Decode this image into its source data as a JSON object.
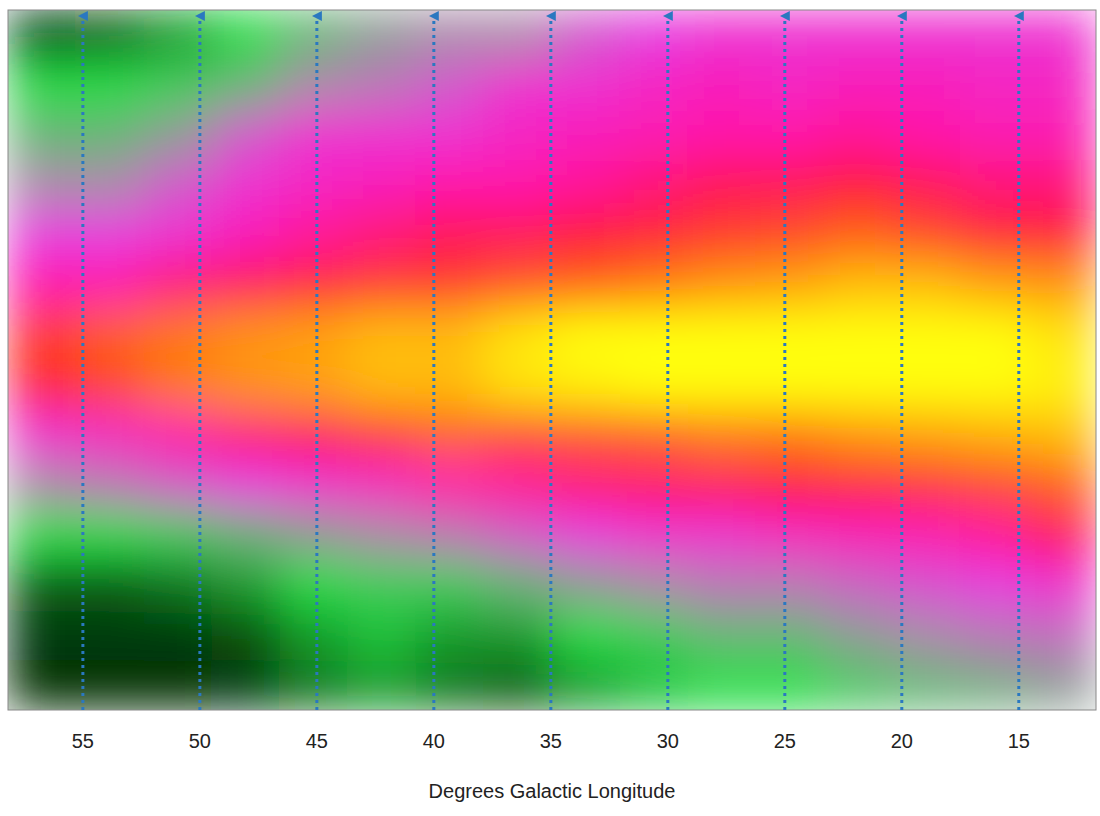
{
  "chart_data": {
    "type": "heatmap",
    "xlabel": "Degrees Galactic Longitude",
    "xlim": [
      58.2,
      11.7
    ],
    "xticks": [
      55,
      50,
      45,
      40,
      35,
      30,
      25,
      20,
      15
    ],
    "grid": true,
    "tick_labels": "x",
    "cells": [
      [
        0.5,
        1,
        1.5,
        2,
        2.5,
        2.8,
        3,
        3,
        3.5,
        3.8,
        4,
        4,
        4,
        4,
        4,
        4
      ],
      [
        2,
        2,
        2.2,
        2.5,
        3,
        3.2,
        3.5,
        4,
        4,
        4.2,
        4.3,
        4.2,
        4.3,
        4.3,
        4.2,
        4.2
      ],
      [
        2.5,
        2.5,
        2.8,
        3.5,
        4,
        4,
        4,
        4.2,
        4.3,
        4.4,
        4.5,
        4.5,
        4.6,
        4.5,
        4.4,
        4.4
      ],
      [
        3,
        3,
        3.5,
        4,
        4.2,
        4.3,
        4.5,
        4.5,
        4.6,
        4.8,
        5,
        5,
        5.2,
        5,
        4.8,
        4.8
      ],
      [
        3.8,
        3.8,
        4,
        4.3,
        4.6,
        4.8,
        5,
        5,
        5.2,
        5.3,
        5.5,
        5.6,
        5.8,
        5.6,
        5.3,
        5.2
      ],
      [
        4.5,
        4.5,
        4.8,
        5,
        5.3,
        5.5,
        5.5,
        5.7,
        5.8,
        6,
        6.2,
        6.3,
        6.5,
        6.5,
        6.3,
        6.2
      ],
      [
        5.5,
        5.8,
        6,
        6.2,
        6.3,
        6.5,
        6.5,
        6.8,
        7,
        7,
        7,
        7,
        7,
        7,
        7,
        6.8
      ],
      [
        5.3,
        5.6,
        6,
        6.2,
        6.3,
        6.5,
        6.5,
        6.8,
        6.9,
        7,
        7,
        7,
        7,
        7,
        7,
        6.9
      ],
      [
        4,
        4.2,
        4.5,
        4.8,
        5,
        5.5,
        5.8,
        5.6,
        5.7,
        5.8,
        6,
        6,
        6.2,
        6.3,
        6.4,
        6.5
      ],
      [
        3,
        3.2,
        3.5,
        3.8,
        4,
        4.2,
        4.5,
        4.6,
        4.8,
        4.9,
        5,
        5.2,
        5.3,
        5.4,
        5.6,
        5.8
      ],
      [
        2,
        2,
        2.2,
        2.5,
        2.8,
        3,
        3.2,
        3.5,
        3.8,
        4,
        4,
        4.2,
        4.3,
        4.4,
        4.6,
        5
      ],
      [
        1,
        1,
        1.2,
        1.5,
        2,
        2.2,
        2.2,
        2.5,
        2.8,
        3,
        3.2,
        3.2,
        3.4,
        3.6,
        3.8,
        4
      ],
      [
        0.5,
        0.5,
        0.5,
        0.8,
        1.5,
        1.8,
        1.5,
        1.5,
        2,
        2.2,
        2.5,
        2.5,
        2.8,
        3,
        3.2,
        3.3
      ],
      [
        0.3,
        0.3,
        0.3,
        0.5,
        1.2,
        1.5,
        1.2,
        1,
        1.5,
        1.8,
        2,
        2,
        2.3,
        2.5,
        2.6,
        2.8
      ]
    ]
  }
}
